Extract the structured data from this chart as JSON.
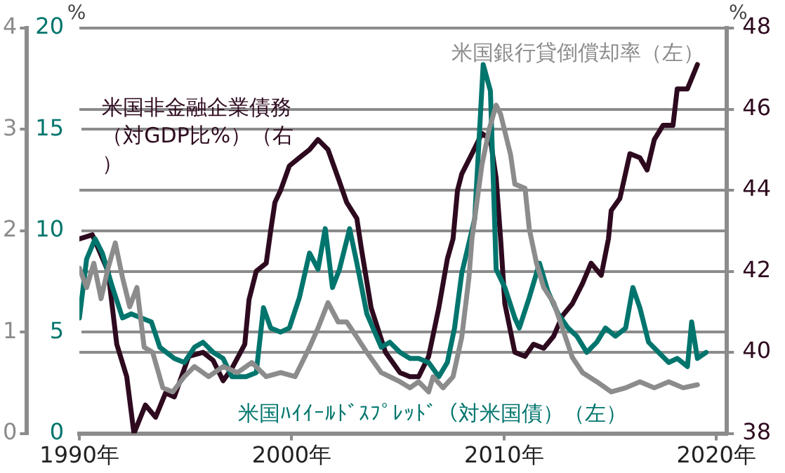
{
  "chart_data": {
    "type": "line",
    "ylabel": "%",
    "y2label": "%",
    "xlim": [
      1990,
      2020.5
    ],
    "xticks": [
      {
        "value": 1990,
        "label": "1990年"
      },
      {
        "value": 2000,
        "label": "2000年"
      },
      {
        "value": 2010,
        "label": "2010年"
      },
      {
        "value": 2020,
        "label": "2020年"
      }
    ],
    "ylim": [
      0,
      4
    ],
    "yticks": [
      0,
      1,
      2,
      3,
      4
    ],
    "y3lim": [
      0,
      20
    ],
    "y3ticks": [
      0,
      5,
      10,
      15,
      20
    ],
    "y2lim": [
      38,
      48
    ],
    "y2ticks": [
      38,
      40,
      42,
      44,
      46,
      48
    ],
    "grid": "y",
    "legend": false,
    "marker": "none",
    "line_style": "solid",
    "series": [
      {
        "name": "米国銀行貸倒償却率（左）",
        "color": "#8c8c8c",
        "axis": "y",
        "x": [
          1990.0,
          1990.34,
          1990.68,
          1991.02,
          1991.35,
          1991.69,
          1992.03,
          1992.37,
          1992.71,
          1993.05,
          1993.45,
          1993.93,
          1994.4,
          1994.94,
          1995.42,
          1996.09,
          1996.77,
          1997.45,
          1998.12,
          1998.8,
          1999.48,
          2000.16,
          2000.84,
          2001.24,
          2001.71,
          2002.19,
          2002.59,
          2003.07,
          2003.54,
          2004.22,
          2004.62,
          2005.1,
          2005.57,
          2005.98,
          2006.45,
          2006.66,
          2007.13,
          2007.6,
          2008.01,
          2008.35,
          2008.49,
          2008.96,
          2009.3,
          2009.63,
          2009.84,
          2010.31,
          2010.51,
          2010.99,
          2011.19,
          2011.53,
          2011.87,
          2012.34,
          2012.75,
          2013.22,
          2013.7,
          2014.37,
          2015.05,
          2015.73,
          2016.4,
          2017.08,
          2017.76,
          2018.44,
          2019.11
        ],
        "values": [
          1.63,
          1.44,
          1.68,
          1.33,
          1.63,
          1.88,
          1.54,
          1.25,
          1.44,
          0.85,
          0.8,
          0.45,
          0.41,
          0.56,
          0.66,
          0.56,
          0.66,
          0.6,
          0.7,
          0.56,
          0.6,
          0.56,
          0.85,
          1.04,
          1.29,
          1.1,
          1.1,
          0.95,
          0.8,
          0.6,
          0.56,
          0.51,
          0.45,
          0.51,
          0.41,
          0.56,
          0.45,
          0.56,
          0.95,
          1.54,
          1.92,
          2.65,
          3.0,
          3.24,
          3.15,
          2.75,
          2.46,
          2.42,
          2.02,
          1.68,
          1.44,
          1.29,
          1.04,
          0.75,
          0.6,
          0.51,
          0.41,
          0.45,
          0.51,
          0.45,
          0.51,
          0.45,
          0.48
        ]
      },
      {
        "name": "米国ﾊｲｲｰﾙﾄﾞｽﾌﾟﾚｯﾄﾞ（対米国債）（左）",
        "color": "#00756d",
        "axis": "y3",
        "x": [
          1990.0,
          1990.34,
          1990.74,
          1991.08,
          1991.56,
          1992.03,
          1992.44,
          1992.91,
          1993.39,
          1993.79,
          1994.47,
          1994.94,
          1995.42,
          1995.82,
          1996.3,
          1996.77,
          1997.18,
          1997.85,
          1998.33,
          1998.67,
          1999.01,
          1999.48,
          1999.89,
          2000.36,
          2000.84,
          2001.24,
          2001.58,
          2001.92,
          2002.25,
          2002.73,
          2003.07,
          2003.54,
          2004.22,
          2004.62,
          2005.1,
          2005.57,
          2005.98,
          2006.45,
          2006.93,
          2007.33,
          2007.67,
          2008.01,
          2008.62,
          2009.02,
          2009.36,
          2009.63,
          2010.04,
          2010.51,
          2010.72,
          2011.19,
          2011.67,
          2012.07,
          2012.55,
          2013.02,
          2013.43,
          2013.9,
          2014.37,
          2014.78,
          2015.25,
          2015.73,
          2016.07,
          2016.4,
          2016.81,
          2017.28,
          2017.76,
          2018.16,
          2018.64,
          2018.84,
          2019.11,
          2019.52
        ],
        "values": [
          5.7,
          8.6,
          9.6,
          8.9,
          7.2,
          5.7,
          5.9,
          5.7,
          5.5,
          4.25,
          3.7,
          3.5,
          4.25,
          4.5,
          4.0,
          3.7,
          2.8,
          2.8,
          3.0,
          6.2,
          5.2,
          5.0,
          5.2,
          6.7,
          8.9,
          8.1,
          10.1,
          7.2,
          8.1,
          10.1,
          8.4,
          5.9,
          4.25,
          4.5,
          4.0,
          3.7,
          3.7,
          3.5,
          2.8,
          3.5,
          5.2,
          7.9,
          10.6,
          18.2,
          16.9,
          8.1,
          7.2,
          5.7,
          5.2,
          6.7,
          8.4,
          7.0,
          5.9,
          5.2,
          4.8,
          4.0,
          4.5,
          5.2,
          4.8,
          5.2,
          7.2,
          6.2,
          4.5,
          4.0,
          3.5,
          3.7,
          3.3,
          5.5,
          3.7,
          4.0
        ]
      },
      {
        "name": "米国非金融企業債務（対GDP比%）（右）",
        "color": "#2e0a1f",
        "axis": "y2",
        "x": [
          1990.0,
          1990.61,
          1991.35,
          1991.76,
          1992.23,
          1992.57,
          1993.11,
          1993.59,
          1994.06,
          1994.47,
          1995.15,
          1995.82,
          1996.3,
          1996.77,
          1997.18,
          1997.79,
          1997.99,
          1998.33,
          1998.8,
          1999.01,
          1999.21,
          1999.48,
          1999.89,
          2000.36,
          2000.84,
          2001.24,
          2001.71,
          2002.19,
          2002.59,
          2003.07,
          2003.27,
          2003.74,
          2004.42,
          2005.1,
          2005.57,
          2005.98,
          2006.45,
          2006.93,
          2007.33,
          2007.6,
          2007.81,
          2008.01,
          2008.49,
          2008.96,
          2009.36,
          2009.63,
          2009.84,
          2010.04,
          2010.51,
          2010.99,
          2011.39,
          2011.87,
          2012.34,
          2012.75,
          2013.22,
          2013.7,
          2014.1,
          2014.58,
          2014.92,
          2015.05,
          2015.46,
          2015.93,
          2016.4,
          2016.74,
          2017.08,
          2017.49,
          2017.96,
          2018.16,
          2018.64,
          2019.11
        ],
        "values": [
          42.8,
          42.9,
          42.0,
          40.2,
          39.4,
          38.0,
          38.7,
          38.4,
          39.0,
          38.9,
          39.9,
          40.0,
          39.8,
          39.3,
          39.6,
          40.2,
          41.3,
          42.0,
          42.2,
          43.0,
          43.7,
          44.0,
          44.6,
          44.8,
          45.0,
          45.25,
          45.0,
          44.3,
          43.7,
          43.3,
          42.6,
          41.1,
          40.0,
          39.5,
          39.4,
          39.4,
          39.9,
          41.1,
          42.3,
          42.8,
          44.0,
          44.4,
          44.9,
          45.4,
          45.25,
          44.3,
          42.8,
          41.2,
          40.0,
          39.9,
          40.2,
          40.1,
          40.4,
          40.9,
          41.2,
          41.7,
          42.2,
          41.9,
          42.8,
          43.5,
          43.8,
          44.9,
          44.8,
          44.5,
          45.25,
          45.6,
          45.6,
          46.5,
          46.5,
          47.1
        ]
      }
    ]
  }
}
